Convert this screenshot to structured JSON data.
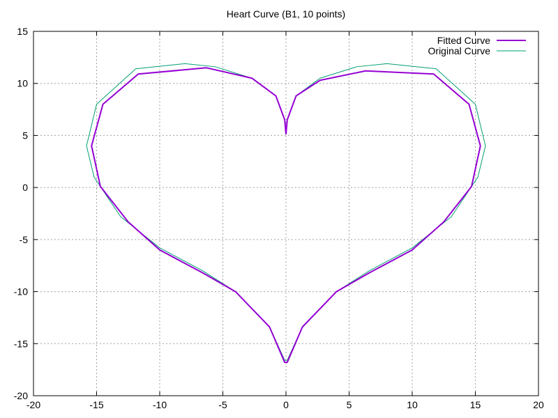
{
  "chart_data": {
    "type": "line",
    "title": "Heart Curve (B1, 10 points)",
    "xlabel": "",
    "ylabel": "",
    "xlim": [
      -20,
      20
    ],
    "ylim": [
      -20,
      15
    ],
    "x_ticks": [
      "-20",
      "-15",
      "-10",
      "-5",
      "0",
      "5",
      "10",
      "15",
      "20"
    ],
    "y_ticks": [
      "15",
      "10",
      "5",
      "0",
      "-5",
      "-10",
      "-15",
      "-20"
    ],
    "grid": true,
    "legend_position": "top-right",
    "series": [
      {
        "name": "Fitted Curve",
        "color": "#9400d3",
        "x": [
          0,
          0.1,
          0.8,
          2.7,
          6.3,
          11.7,
          14.5,
          15.4,
          14.7,
          12.5,
          10.0,
          6.6,
          4.0,
          1.3,
          0.1,
          -0.1,
          -1.3,
          -4.0,
          -6.6,
          -10.0,
          -12.5,
          -14.7,
          -15.4,
          -14.5,
          -11.7,
          -6.3,
          -2.7,
          -0.8,
          -0.1,
          0
        ],
        "y": [
          5.1,
          6.5,
          8.8,
          10.3,
          11.2,
          10.9,
          8.0,
          4.0,
          0.1,
          -3.3,
          -6.0,
          -8.2,
          -10.0,
          -13.4,
          -16.8,
          -16.8,
          -13.4,
          -10.0,
          -8.2,
          -6.0,
          -3.3,
          0.1,
          4.0,
          8.0,
          10.9,
          11.5,
          10.5,
          8.8,
          6.5,
          5.1
        ]
      },
      {
        "name": "Original Curve",
        "color": "#009e73",
        "x": [
          0,
          0.1,
          0.8,
          2.7,
          5.6,
          8.0,
          11.9,
          15.0,
          15.8,
          15.2,
          13.1,
          10.0,
          6.6,
          4.0,
          1.3,
          0.1,
          -0.1,
          -1.3,
          -4.0,
          -6.6,
          -10.0,
          -13.1,
          -15.2,
          -15.8,
          -15.0,
          -11.9,
          -8.0,
          -5.6,
          -2.7,
          -0.8,
          -0.1,
          0
        ],
        "y": [
          5.1,
          6.5,
          8.8,
          10.5,
          11.6,
          11.9,
          11.4,
          8.0,
          4.0,
          1.0,
          -2.8,
          -5.8,
          -8.0,
          -10.0,
          -13.4,
          -16.6,
          -16.6,
          -13.4,
          -10.0,
          -8.0,
          -5.8,
          -2.8,
          1.0,
          4.0,
          8.0,
          11.4,
          11.9,
          11.6,
          10.5,
          8.8,
          6.5,
          5.1
        ]
      }
    ]
  }
}
